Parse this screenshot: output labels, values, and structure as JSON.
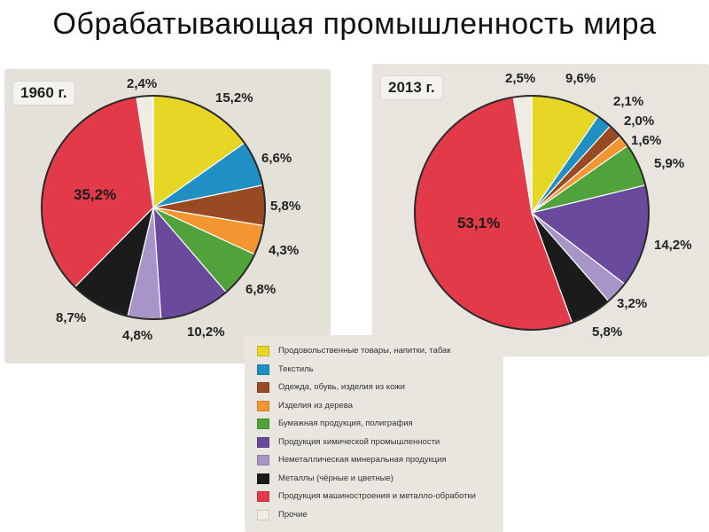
{
  "title": "Обрабатывающая промышленность мира",
  "colors": {
    "food": "#e6d626",
    "textile": "#1f8fc4",
    "clothing": "#9a4a22",
    "wood": "#f39631",
    "paper": "#4fa33a",
    "chemical": "#6a4a9c",
    "mineral": "#a895c7",
    "metals": "#1b1b1b",
    "machinery": "#e23a48",
    "other": "#efece4"
  },
  "legend": [
    {
      "key": "food",
      "label": "Продовольственные товары, напитки, табак"
    },
    {
      "key": "textile",
      "label": "Текстиль"
    },
    {
      "key": "clothing",
      "label": "Одежда, обувь, изделия из кожи"
    },
    {
      "key": "wood",
      "label": "Изделия из дерева"
    },
    {
      "key": "paper",
      "label": "Бумажная продукция, полиграфия"
    },
    {
      "key": "chemical",
      "label": "Продукция химической промышленности"
    },
    {
      "key": "mineral",
      "label": "Неметаллическая минеральная продукция"
    },
    {
      "key": "metals",
      "label": "Металлы (чёрные и цветные)"
    },
    {
      "key": "machinery",
      "label": "Продукция машиностроения и металло-обработки"
    },
    {
      "key": "other",
      "label": "Прочие"
    }
  ],
  "chart_data": [
    {
      "type": "pie",
      "title": "1960 г.",
      "slices": [
        {
          "key": "food",
          "value": 15.2,
          "label": "15,2%"
        },
        {
          "key": "textile",
          "value": 6.6,
          "label": "6,6%"
        },
        {
          "key": "clothing",
          "value": 5.8,
          "label": "5,8%"
        },
        {
          "key": "wood",
          "value": 4.3,
          "label": "4,3%"
        },
        {
          "key": "paper",
          "value": 6.8,
          "label": "6,8%"
        },
        {
          "key": "chemical",
          "value": 10.2,
          "label": "10,2%"
        },
        {
          "key": "mineral",
          "value": 4.8,
          "label": "4,8%"
        },
        {
          "key": "metals",
          "value": 8.7,
          "label": "8,7%"
        },
        {
          "key": "machinery",
          "value": 35.2,
          "label": "35,2%"
        },
        {
          "key": "other",
          "value": 2.4,
          "label": "2,4%"
        }
      ]
    },
    {
      "type": "pie",
      "title": "2013 г.",
      "slices": [
        {
          "key": "food",
          "value": 9.6,
          "label": "9,6%"
        },
        {
          "key": "textile",
          "value": 2.1,
          "label": "2,1%"
        },
        {
          "key": "clothing",
          "value": 2.0,
          "label": "2,0%"
        },
        {
          "key": "wood",
          "value": 1.6,
          "label": "1,6%"
        },
        {
          "key": "paper",
          "value": 5.9,
          "label": "5,9%"
        },
        {
          "key": "chemical",
          "value": 14.2,
          "label": "14,2%"
        },
        {
          "key": "mineral",
          "value": 3.2,
          "label": "3,2%"
        },
        {
          "key": "metals",
          "value": 5.8,
          "label": "5,8%"
        },
        {
          "key": "machinery",
          "value": 53.1,
          "label": "53,1%"
        },
        {
          "key": "other",
          "value": 2.5,
          "label": "2,5%"
        }
      ]
    }
  ]
}
